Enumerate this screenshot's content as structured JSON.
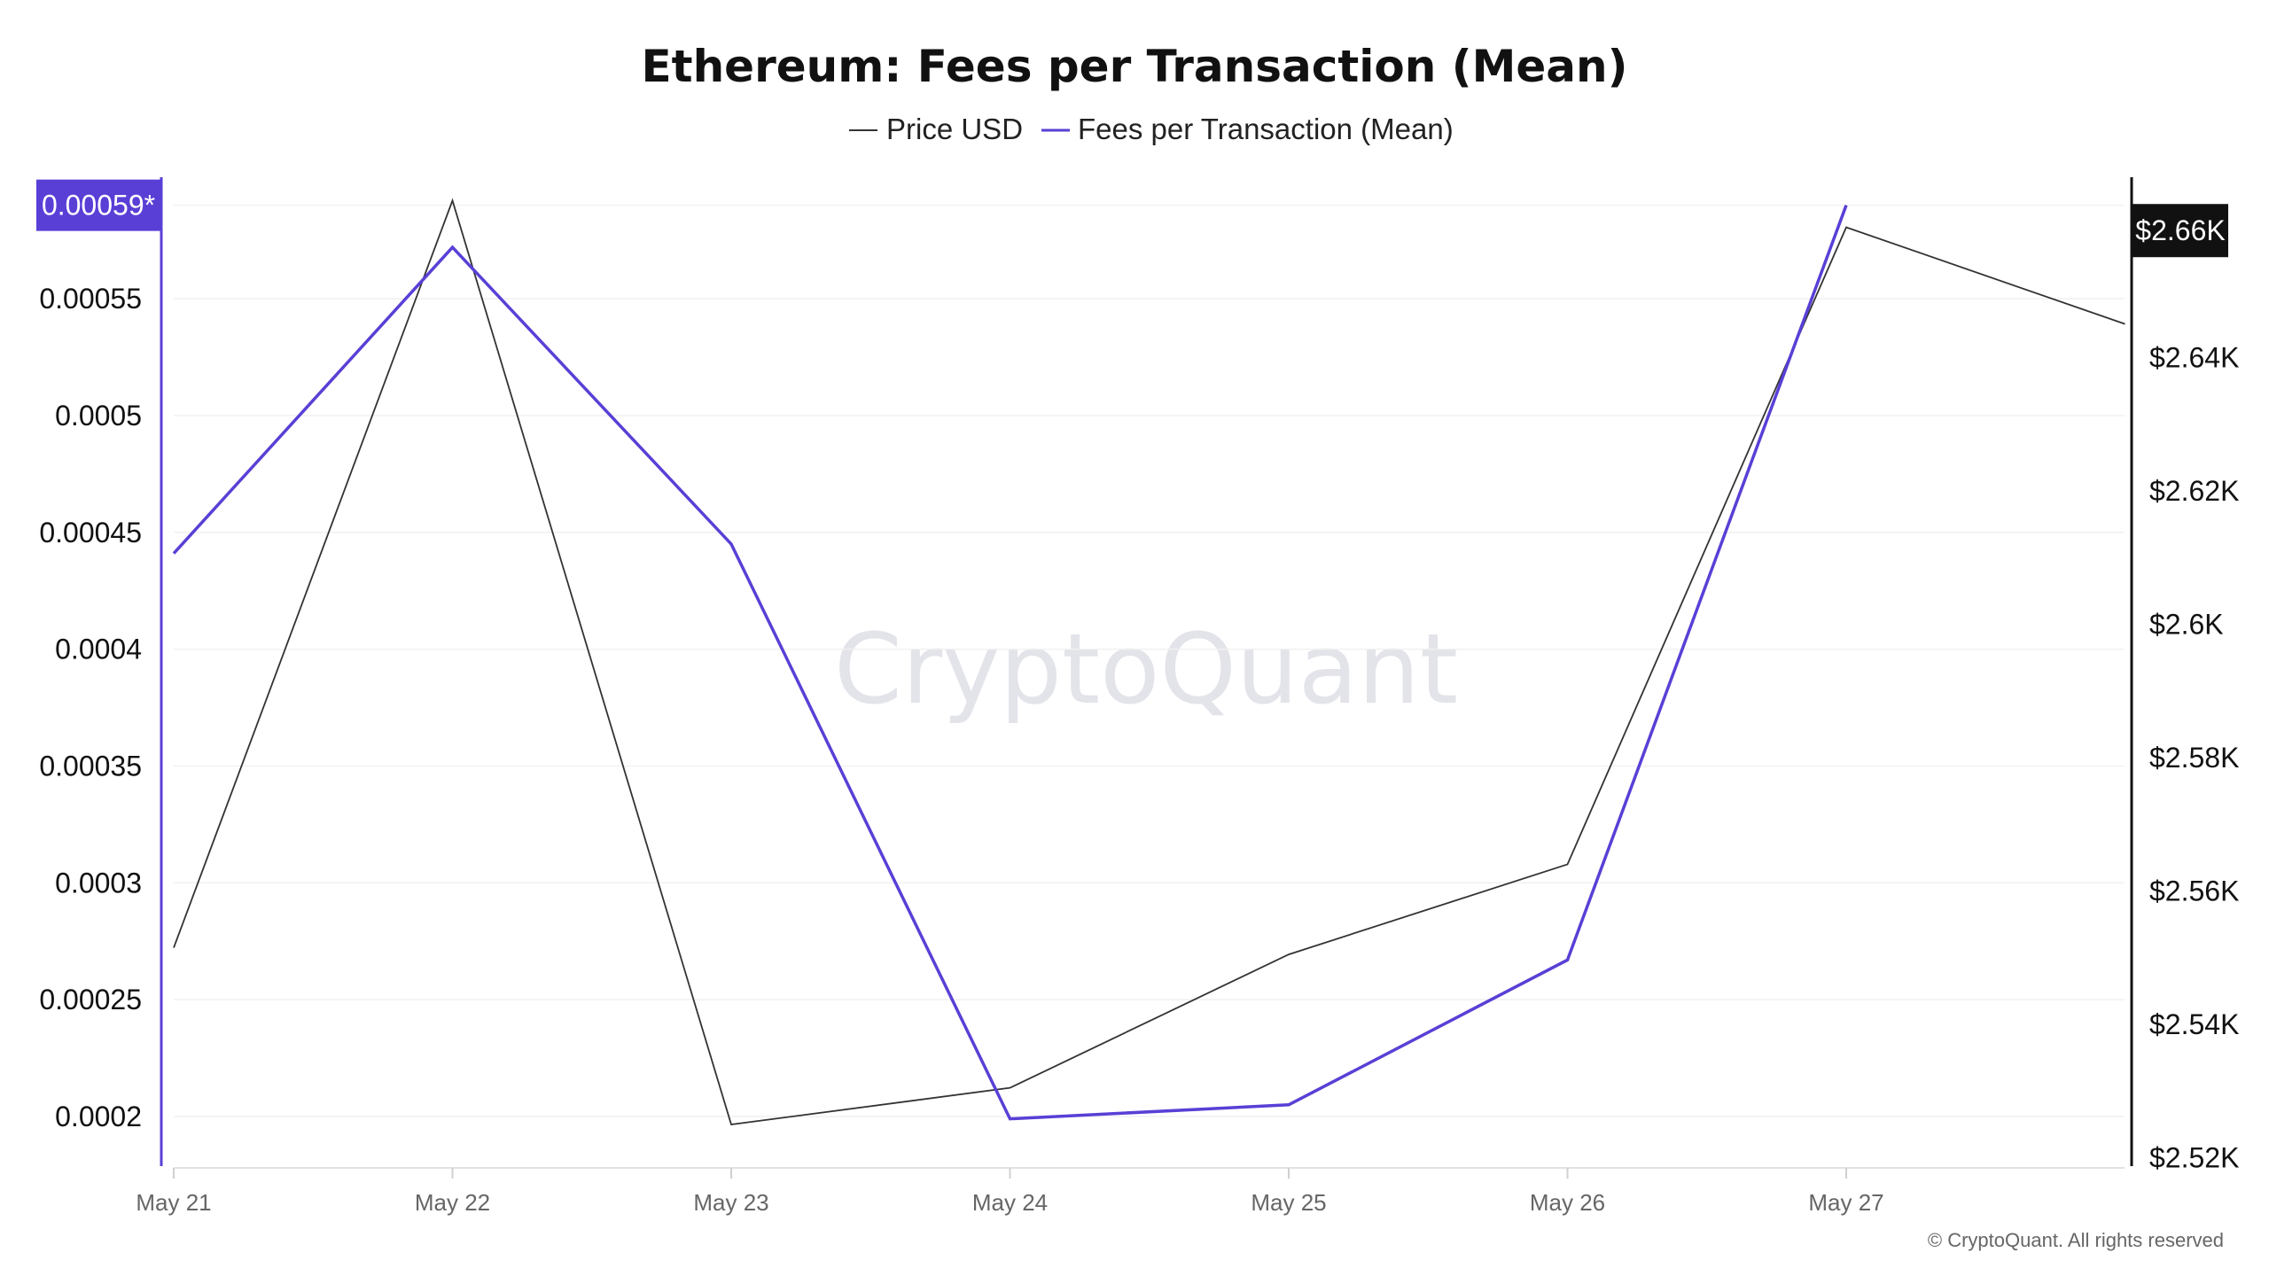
{
  "chart_data": {
    "type": "line",
    "title": "Ethereum: Fees per Transaction (Mean)",
    "watermark": "CryptoQuant",
    "copyright": "© CryptoQuant. All rights reserved",
    "x": [
      "May 21",
      "May 22",
      "May 23",
      "May 24",
      "May 25",
      "May 26",
      "May 27",
      ""
    ],
    "x_tick_labels": [
      "May 21",
      "May 22",
      "May 23",
      "May 24",
      "May 25",
      "May 26",
      "May 27"
    ],
    "legend_position": "top-center",
    "grid": true,
    "left_axis": {
      "ticks": [
        "0.0002",
        "0.00025",
        "0.0003",
        "0.00035",
        "0.0004",
        "0.00045",
        "0.0005",
        "0.00055"
      ],
      "tick_values": [
        0.0002,
        0.00025,
        0.0003,
        0.00035,
        0.0004,
        0.00045,
        0.0005,
        0.00055
      ],
      "range": [
        0.000178,
        0.000602
      ],
      "color": "#5a3fd6",
      "badge_label": "0.00059*",
      "badge_value": 0.00059
    },
    "right_axis": {
      "ticks": [
        "$2.52K",
        "$2.54K",
        "$2.56K",
        "$2.58K",
        "$2.6K",
        "$2.62K",
        "$2.64K"
      ],
      "tick_values": [
        2520,
        2540,
        2560,
        2580,
        2600,
        2620,
        2640
      ],
      "range": [
        2518.5,
        2667
      ],
      "color": "#111111",
      "badge_label": "$2.66K",
      "badge_value": 2659
    },
    "series": [
      {
        "name": "Price USD",
        "axis": "right",
        "color": "#333333",
        "values": [
          2551.5,
          2663.5,
          2525,
          2530.5,
          2550.5,
          2564,
          2659.5,
          2645
        ]
      },
      {
        "name": "Fees per Transaction (Mean)",
        "axis": "left",
        "color": "#5a3fd6",
        "values": [
          0.000441,
          0.000572,
          0.000445,
          0.000199,
          0.000205,
          0.000267,
          0.00059,
          null
        ]
      }
    ]
  }
}
